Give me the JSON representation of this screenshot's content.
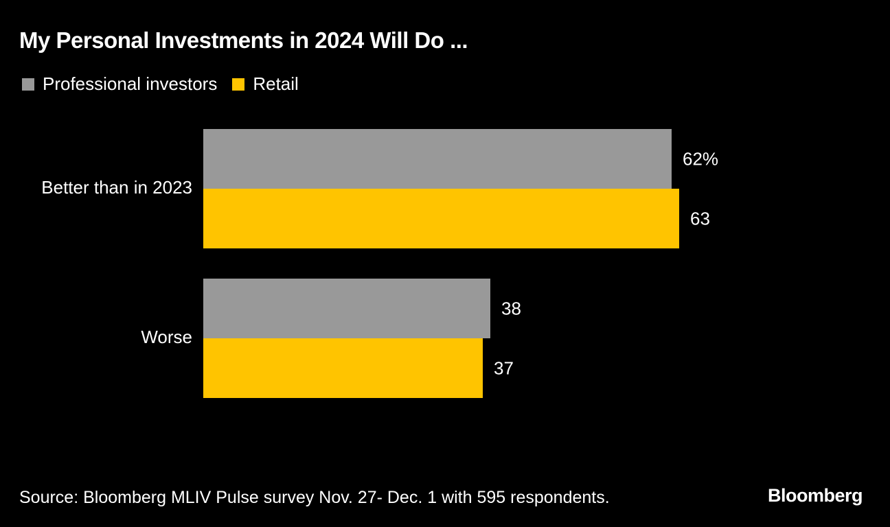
{
  "chart_data": {
    "type": "bar",
    "orientation": "horizontal",
    "title": "My Personal Investments in 2024 Will Do ...",
    "categories": [
      "Better than in 2023",
      "Worse"
    ],
    "series": [
      {
        "name": "Professional investors",
        "color": "#999999",
        "values": [
          62,
          38
        ],
        "labels": [
          "62%",
          "38"
        ]
      },
      {
        "name": "Retail",
        "color": "#ffc400",
        "values": [
          63,
          37
        ],
        "labels": [
          "63",
          "37"
        ]
      }
    ],
    "xlabel": "",
    "ylabel": "",
    "xlim": [
      0,
      100
    ],
    "grid": false,
    "legend": "top-left",
    "source": "Source: Bloomberg MLIV Pulse survey Nov. 27- Dec. 1 with 595 respondents."
  },
  "brand": "Bloomberg"
}
